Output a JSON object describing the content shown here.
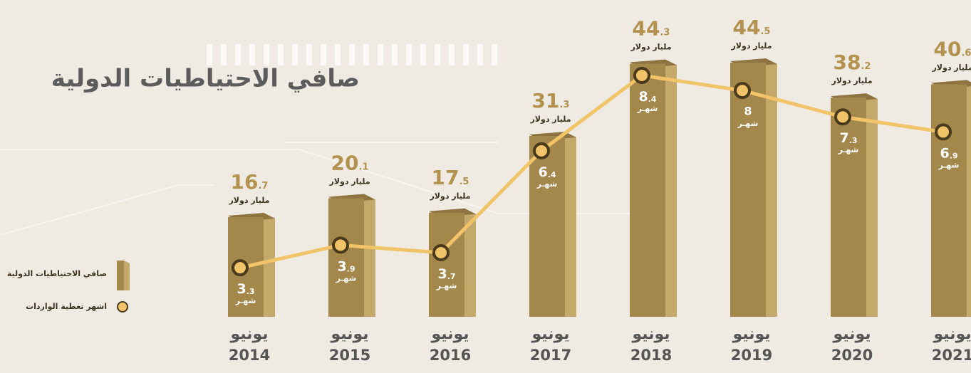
{
  "chart_data": {
    "type": "bar",
    "title": "صافي الاحتياطيات الدولية",
    "month": "يونيو",
    "categories": [
      "2014",
      "2015",
      "2016",
      "2017",
      "2018",
      "2019",
      "2020",
      "2021"
    ],
    "bar_unit": "مليار دولار",
    "line_unit": "شهـر",
    "ylim": [
      -2,
      55
    ],
    "y2lim": [
      2,
      10.4
    ],
    "series": [
      {
        "name": "صافي الاحتياطيات الدولية",
        "type": "bar",
        "color": "#a4874b",
        "values": [
          16.7,
          20.1,
          17.5,
          31.3,
          44.3,
          44.5,
          38.2,
          40.6
        ]
      },
      {
        "name": "اشهر تغطية الواردات",
        "type": "line",
        "axis": "y2",
        "color": "#f2c46a",
        "values": [
          3.3,
          3.9,
          3.7,
          6.4,
          8.4,
          8,
          7.3,
          6.9
        ]
      }
    ],
    "legend": "left"
  }
}
